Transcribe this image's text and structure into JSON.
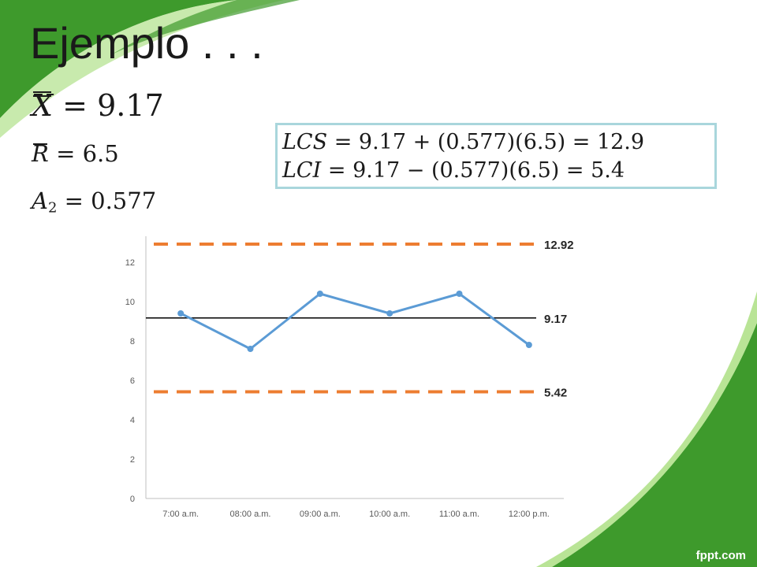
{
  "slide": {
    "title": "Ejemplo . . .",
    "brand": "fppt.com",
    "accent_green": "#3e9a2c",
    "accent_light": "#8bd35a"
  },
  "formulas": {
    "xbar": {
      "symbol": "X",
      "rhs": "= 9.17"
    },
    "rbar": {
      "symbol": "R",
      "rhs": "= 6.5"
    },
    "a2": {
      "symbol": "A",
      "subscript": "2",
      "rhs": "= 0.577"
    },
    "lcs": {
      "symbol": "LCS",
      "rhs": "= 9.17 + (0.577)(6.5) = 12.9"
    },
    "lci": {
      "symbol": "LCI",
      "rhs": "= 9.17 − (0.577)(6.5) = 5.4"
    }
  },
  "chart_data": {
    "type": "line",
    "categories": [
      "7:00 a.m.",
      "08:00 a.m.",
      "09:00 a.m.",
      "10:00 a.m.",
      "11:00 a.m.",
      "12:00 p.m."
    ],
    "series": [
      {
        "values": [
          9.4,
          7.6,
          10.4,
          9.4,
          10.4,
          7.8
        ],
        "color": "#5b9bd5"
      }
    ],
    "reference_lines": [
      {
        "value": 12.92,
        "label": "12.92",
        "style": "dashed",
        "color": "#ed7d31"
      },
      {
        "value": 9.17,
        "label": "9.17",
        "style": "solid",
        "color": "#000000"
      },
      {
        "value": 5.42,
        "label": "5.42",
        "style": "dashed",
        "color": "#ed7d31"
      }
    ],
    "y_ticks": [
      "0",
      "2",
      "4",
      "6",
      "8",
      "10",
      "12"
    ],
    "ylim": [
      0,
      13
    ],
    "grid": false,
    "legend": "none"
  }
}
